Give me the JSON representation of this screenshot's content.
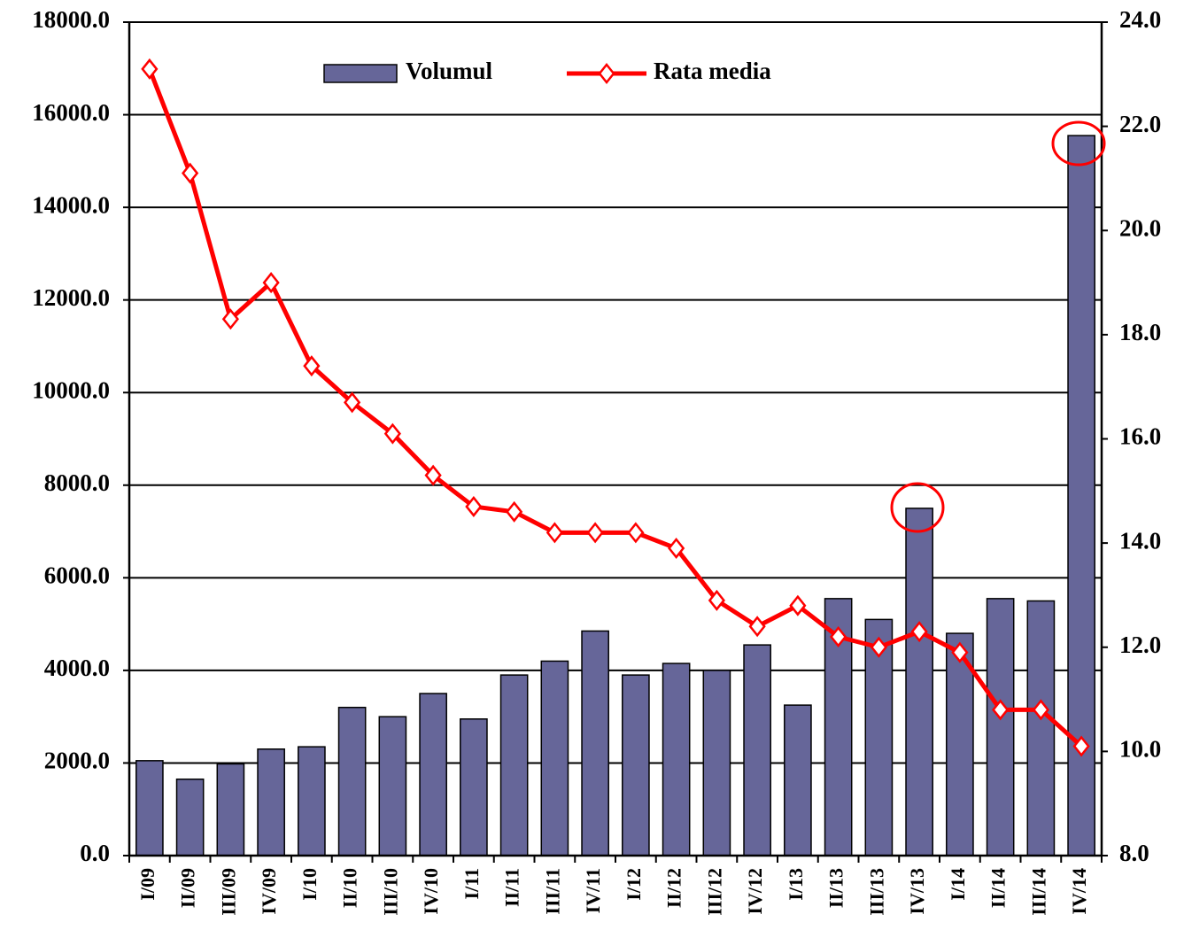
{
  "chart_data": {
    "type": "bar-line",
    "categories": [
      "I/09",
      "II/09",
      "III/09",
      "IV/09",
      "I/10",
      "II/10",
      "III/10",
      "IV/10",
      "I/11",
      "II/11",
      "III/11",
      "IV/11",
      "I/12",
      "II/12",
      "III/12",
      "IV/12",
      "I/13",
      "II/13",
      "III/13",
      "IV/13",
      "I/14",
      "II/14",
      "III/14",
      "IV/14"
    ],
    "series": [
      {
        "name": "Volumul",
        "type": "bar",
        "color": "#666699",
        "values": [
          2050,
          1650,
          1980,
          2300,
          2350,
          3200,
          3000,
          3500,
          2950,
          3900,
          4200,
          4850,
          3900,
          4150,
          4000,
          4550,
          3250,
          5550,
          5100,
          7500,
          4800,
          5550,
          5500,
          15550
        ]
      },
      {
        "name": "Rata media",
        "type": "line",
        "axis": "y2",
        "color": "#ff0000",
        "values": [
          23.1,
          21.1,
          18.3,
          19.0,
          17.4,
          16.7,
          16.1,
          15.3,
          14.7,
          14.6,
          14.2,
          14.2,
          14.2,
          13.9,
          12.9,
          12.4,
          12.8,
          12.2,
          12.0,
          12.3,
          11.9,
          10.8,
          10.8,
          10.1
        ]
      }
    ],
    "ylim": [
      0,
      18000
    ],
    "yticks": [
      {
        "value": 0,
        "label": "0.0"
      },
      {
        "value": 2000,
        "label": "2000.0"
      },
      {
        "value": 4000,
        "label": "4000.0"
      },
      {
        "value": 6000,
        "label": "6000.0"
      },
      {
        "value": 8000,
        "label": "8000.0"
      },
      {
        "value": 10000,
        "label": "10000.0"
      },
      {
        "value": 12000,
        "label": "12000.0"
      },
      {
        "value": 14000,
        "label": "14000.0"
      },
      {
        "value": 16000,
        "label": "16000.0"
      },
      {
        "value": 18000,
        "label": "18000.0"
      }
    ],
    "y2lim": [
      8,
      24
    ],
    "y2ticks": [
      {
        "value": 8,
        "label": "8.0"
      },
      {
        "value": 10,
        "label": "10.0"
      },
      {
        "value": 12,
        "label": "12.0"
      },
      {
        "value": 14,
        "label": "14.0"
      },
      {
        "value": 16,
        "label": "16.0"
      },
      {
        "value": 18,
        "label": "18.0"
      },
      {
        "value": 20,
        "label": "20.0"
      },
      {
        "value": 22,
        "label": "22.0"
      },
      {
        "value": 24,
        "label": "24.0"
      }
    ],
    "grid": true,
    "legend": "top"
  }
}
